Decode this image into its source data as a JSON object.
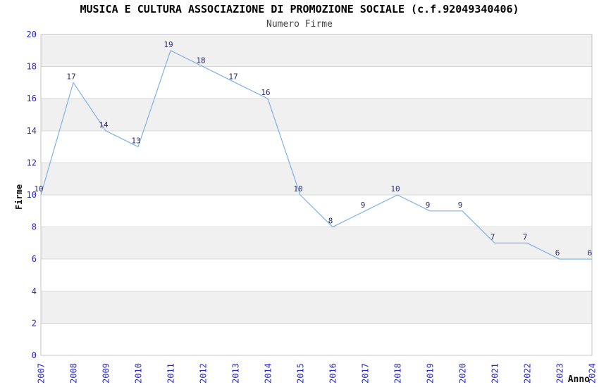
{
  "chart_data": {
    "type": "line",
    "title": "MUSICA E CULTURA ASSOCIAZIONE DI PROMOZIONE SOCIALE (c.f.92049340406)",
    "subtitle": "Numero Firme",
    "xlabel": "Anno",
    "ylabel": "Firme",
    "categories": [
      "2007",
      "2008",
      "2009",
      "2010",
      "2011",
      "2012",
      "2013",
      "2014",
      "2015",
      "2016",
      "2017",
      "2018",
      "2019",
      "2020",
      "2021",
      "2022",
      "2023",
      "2024"
    ],
    "values": [
      10,
      17,
      14,
      13,
      19,
      18,
      17,
      16,
      10,
      8,
      9,
      10,
      9,
      9,
      7,
      7,
      6,
      6
    ],
    "ylim": [
      0,
      20
    ],
    "ytick_step": 2,
    "grid": true,
    "legend_position": "none",
    "band_fill_alternating": true,
    "x_tick_rotation_deg": -90,
    "colors": {
      "line": "#7FB0E6",
      "tick_label": "#2929CC",
      "data_label": "#2B2B6B",
      "band": "#F0F0F0",
      "gridline": "#D8D8D8",
      "plot_border": "#C4C4C4",
      "title": "#000000",
      "subtitle": "#444444",
      "axis_title": "#111111"
    }
  }
}
